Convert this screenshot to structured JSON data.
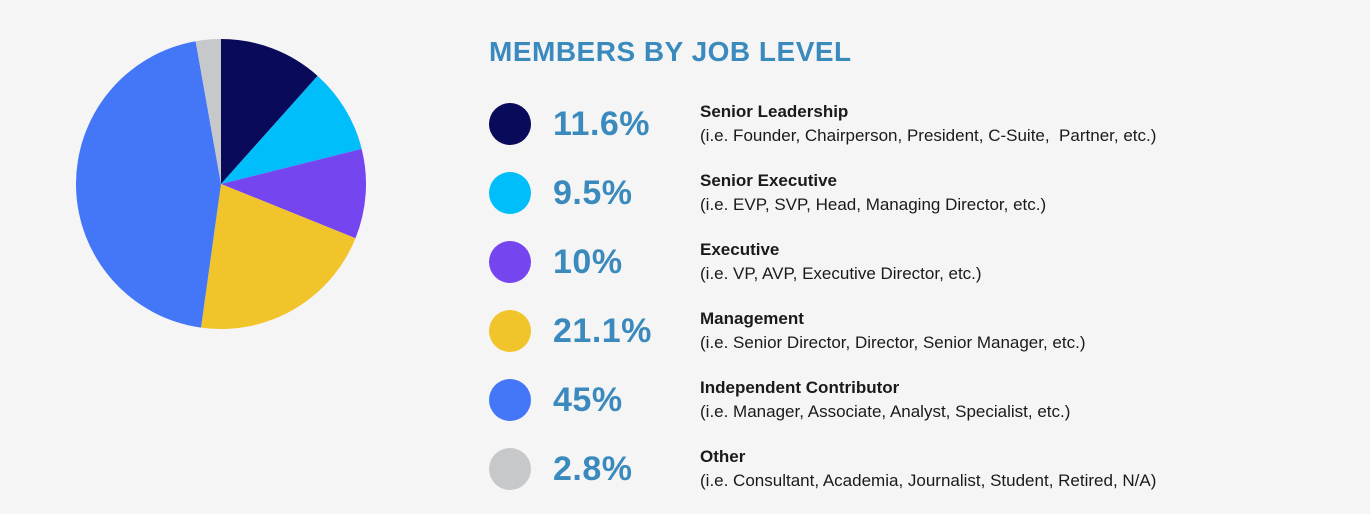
{
  "title": "MEMBERS BY JOB LEVEL",
  "colors": {
    "background": "#f5f5f6",
    "accent_blue": "#3a8abd",
    "label_text": "#1a1a1a"
  },
  "chart_data": {
    "type": "pie",
    "title": "MEMBERS BY JOB LEVEL",
    "start_angle_deg": 0,
    "direction": "clockwise",
    "legend_position": "right",
    "slices": [
      {
        "label": "Senior Leadership",
        "sublabel": "(i.e. Founder, Chairperson, President, C-Suite,  Partner, etc.)",
        "value": 11.6,
        "pct_label": "11.6%",
        "color": "#0a0a5a"
      },
      {
        "label": "Senior Executive",
        "sublabel": "(i.e. EVP, SVP, Head, Managing Director, etc.)",
        "value": 9.5,
        "pct_label": "9.5%",
        "color": "#00befa"
      },
      {
        "label": "Executive",
        "sublabel": "(i.e. VP, AVP, Executive Director, etc.)",
        "value": 10,
        "pct_label": "10%",
        "color": "#7546f0"
      },
      {
        "label": "Management",
        "sublabel": "(i.e. Senior Director, Director, Senior Manager, etc.)",
        "value": 21.1,
        "pct_label": "21.1%",
        "color": "#f2c42b"
      },
      {
        "label": "Independent Contributor",
        "sublabel": "(i.e. Manager, Associate, Analyst, Specialist, etc.)",
        "value": 45,
        "pct_label": "45%",
        "color": "#4377f8"
      },
      {
        "label": "Other",
        "sublabel": "(i.e. Consultant, Academia, Journalist, Student, Retired, N/A)",
        "value": 2.8,
        "pct_label": "2.8%",
        "color": "#c6c8ca"
      }
    ]
  }
}
